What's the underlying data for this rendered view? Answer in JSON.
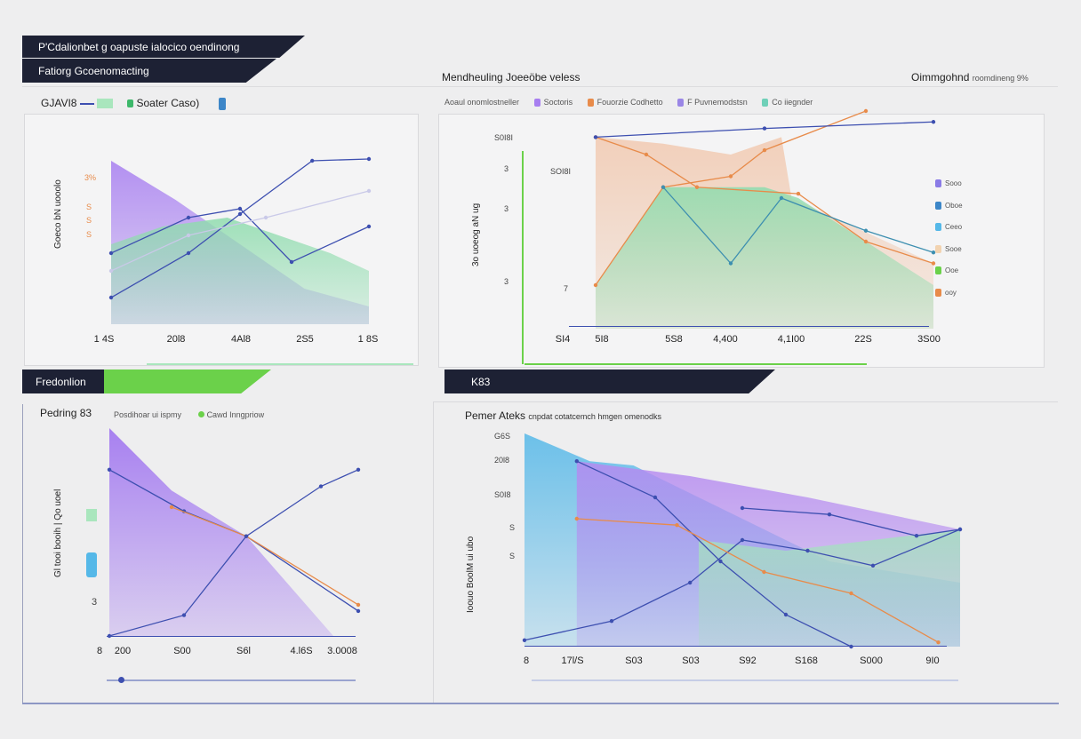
{
  "header": {
    "title": "P'Cdalionbet g oapuste ialocico oendinong",
    "subtitle": "Fatiorg Gcoenomacting"
  },
  "colors": {
    "dark": "#1d2134",
    "accent_green": "#6bd14a",
    "purple": "#a77ef0",
    "green_area": "#8fdcae",
    "blue": "#3d4fb0",
    "orange": "#e88b4a",
    "cyan": "#55b8e8"
  },
  "chart1": {
    "legend": {
      "label": "GJAVI8",
      "series": "Soater Caso)"
    },
    "ylabel": "Goeco bN uooolo",
    "yticks": [
      "3%",
      "S",
      "S",
      "S"
    ],
    "xticks": [
      "1 4S",
      "20l8",
      "4Al8",
      "2S5",
      "1 8S"
    ]
  },
  "chart2": {
    "title": "Mendheuling Joeeöbe veless",
    "right_title": "Oimmgohnd",
    "right_sub": "roomdineng 9%",
    "legend_caption": "Aoaul onomlostneller",
    "legend": [
      {
        "label": "Soctoris",
        "color": "#a77ef0"
      },
      {
        "label": "Fouorzie Codhetto",
        "color": "#e88b4a"
      },
      {
        "label": "F Puvnemodstsn",
        "color": "#9a86e6"
      },
      {
        "label": "Co iiegnder",
        "color": "#6fd0b8"
      }
    ],
    "ylabel": "3o uoeog aN ug",
    "yticks": [
      "S0I8I",
      "3",
      "3",
      "3",
      "7"
    ],
    "ytick_top": "SOI8I",
    "xticks": [
      "SI4",
      "5I8",
      "5S8",
      "4,400",
      "4,1I00",
      "22S",
      "3S00"
    ],
    "side_legend": [
      {
        "label": "Sooo",
        "color": "#8a7be6"
      },
      {
        "label": "Oboe",
        "color": "#3c86c8"
      },
      {
        "label": "Ceeo",
        "color": "#55b8e8"
      },
      {
        "label": "Sooe",
        "color": "#f2d3b0"
      },
      {
        "label": "Ooe",
        "color": "#6bd14a"
      },
      {
        "label": "ooy",
        "color": "#e88b4a"
      }
    ]
  },
  "section3": {
    "label": "Fredonlion"
  },
  "section4": {
    "label": "K83"
  },
  "chart3": {
    "title": "Pedring 83",
    "legend_caption": "Posdihoar ui ispmy",
    "legend_item": "Cawd Inngpriow",
    "ylabel": "Gl tooi booih | Qo uoel",
    "ytick": "3",
    "xticks": [
      "8",
      "200",
      "S00",
      "S6l",
      "4.l6S",
      "3.0008"
    ]
  },
  "chart4": {
    "title": "Pemer Ateks",
    "subtitle": "cnpdat cotatcemch hmgen omenodks",
    "ylabel": "Ioouo BoolM ui ubo",
    "yticks": [
      "G6S",
      "20l8",
      "S0I8",
      "S",
      "S"
    ],
    "xticks": [
      "8",
      "17l/S",
      "S03",
      "S03",
      "S92",
      "S168",
      "S000",
      "9I0"
    ]
  },
  "chart_data": [
    {
      "type": "area",
      "series": [
        {
          "kind": "area",
          "color": "#a77ef0",
          "points": [
            [
              0,
              92
            ],
            [
              25,
              70
            ],
            [
              50,
              45
            ],
            [
              75,
              20
            ],
            [
              100,
              10
            ]
          ]
        },
        {
          "kind": "area",
          "color": "#8fdcae",
          "points": [
            [
              0,
              45
            ],
            [
              20,
              55
            ],
            [
              45,
              60
            ],
            [
              65,
              50
            ],
            [
              85,
              40
            ],
            [
              100,
              30
            ]
          ]
        },
        {
          "kind": "line",
          "color": "#3d4fb0",
          "points": [
            [
              0,
              15
            ],
            [
              30,
              40
            ],
            [
              50,
              62
            ],
            [
              78,
              92
            ],
            [
              100,
              93
            ]
          ]
        },
        {
          "kind": "line",
          "color": "#3d4fb0",
          "points": [
            [
              0,
              40
            ],
            [
              30,
              60
            ],
            [
              50,
              65
            ],
            [
              70,
              35
            ],
            [
              100,
              55
            ]
          ]
        },
        {
          "kind": "line",
          "color": "#c9c9e8",
          "points": [
            [
              0,
              30
            ],
            [
              30,
              50
            ],
            [
              60,
              60
            ],
            [
              100,
              75
            ]
          ]
        }
      ]
    },
    {
      "type": "area",
      "series": [
        {
          "kind": "area",
          "color": "#f1c9b0",
          "points": [
            [
              0,
              88
            ],
            [
              20,
              85
            ],
            [
              40,
              80
            ],
            [
              55,
              88
            ],
            [
              58,
              60
            ],
            [
              100,
              30
            ]
          ]
        },
        {
          "kind": "area",
          "color": "#8fdcae",
          "points": [
            [
              0,
              20
            ],
            [
              20,
              65
            ],
            [
              50,
              65
            ],
            [
              60,
              60
            ],
            [
              75,
              45
            ],
            [
              100,
              20
            ]
          ]
        },
        {
          "kind": "line",
          "color": "#e88b4a",
          "points": [
            [
              0,
              88
            ],
            [
              15,
              80
            ],
            [
              30,
              65
            ],
            [
              60,
              62
            ],
            [
              80,
              40
            ],
            [
              100,
              30
            ]
          ]
        },
        {
          "kind": "line",
          "color": "#e88b4a",
          "points": [
            [
              0,
              20
            ],
            [
              20,
              65
            ],
            [
              40,
              70
            ],
            [
              50,
              82
            ],
            [
              80,
              100
            ]
          ]
        },
        {
          "kind": "line",
          "color": "#3d4fb0",
          "points": [
            [
              0,
              88
            ],
            [
              50,
              92
            ],
            [
              100,
              95
            ]
          ]
        },
        {
          "kind": "line",
          "color": "#3d8fb0",
          "points": [
            [
              20,
              65
            ],
            [
              40,
              30
            ],
            [
              55,
              60
            ],
            [
              80,
              45
            ],
            [
              100,
              35
            ]
          ]
        }
      ]
    },
    {
      "type": "area",
      "series": [
        {
          "kind": "area",
          "color": "#9b6df0",
          "points": [
            [
              0,
              100
            ],
            [
              25,
              70
            ],
            [
              55,
              48
            ],
            [
              90,
              0
            ]
          ]
        },
        {
          "kind": "line",
          "color": "#3d4fb0",
          "points": [
            [
              0,
              80
            ],
            [
              30,
              60
            ],
            [
              55,
              48
            ],
            [
              100,
              12
            ]
          ]
        },
        {
          "kind": "line",
          "color": "#e88b4a",
          "points": [
            [
              25,
              62
            ],
            [
              55,
              48
            ],
            [
              100,
              15
            ]
          ]
        },
        {
          "kind": "line",
          "color": "#3d4fb0",
          "points": [
            [
              0,
              0
            ],
            [
              30,
              10
            ],
            [
              55,
              48
            ],
            [
              85,
              72
            ],
            [
              100,
              80
            ]
          ]
        }
      ]
    },
    {
      "type": "area",
      "series": [
        {
          "kind": "area",
          "color": "#55b8e8",
          "points": [
            [
              0,
              100
            ],
            [
              15,
              87
            ],
            [
              25,
              85
            ],
            [
              50,
              60
            ],
            [
              70,
              40
            ],
            [
              100,
              30
            ]
          ]
        },
        {
          "kind": "area",
          "color": "#b58af0",
          "points": [
            [
              12,
              87
            ],
            [
              38,
              80
            ],
            [
              65,
              70
            ],
            [
              100,
              55
            ]
          ]
        },
        {
          "kind": "area",
          "color": "#a5e0c0",
          "points": [
            [
              40,
              50
            ],
            [
              60,
              45
            ],
            [
              100,
              55
            ]
          ]
        },
        {
          "kind": "line",
          "color": "#3d4fb0",
          "points": [
            [
              0,
              3
            ],
            [
              20,
              12
            ],
            [
              38,
              30
            ],
            [
              50,
              50
            ],
            [
              65,
              45
            ],
            [
              80,
              38
            ],
            [
              100,
              55
            ]
          ]
        },
        {
          "kind": "line",
          "color": "#3d4fb0",
          "points": [
            [
              12,
              87
            ],
            [
              30,
              70
            ],
            [
              45,
              40
            ],
            [
              60,
              15
            ],
            [
              75,
              0
            ]
          ]
        },
        {
          "kind": "line",
          "color": "#e88b4a",
          "points": [
            [
              12,
              60
            ],
            [
              35,
              57
            ],
            [
              55,
              35
            ],
            [
              75,
              25
            ],
            [
              95,
              2
            ]
          ]
        },
        {
          "kind": "line",
          "color": "#3d4fb0",
          "points": [
            [
              50,
              65
            ],
            [
              70,
              62
            ],
            [
              90,
              52
            ],
            [
              100,
              55
            ]
          ]
        }
      ]
    }
  ]
}
